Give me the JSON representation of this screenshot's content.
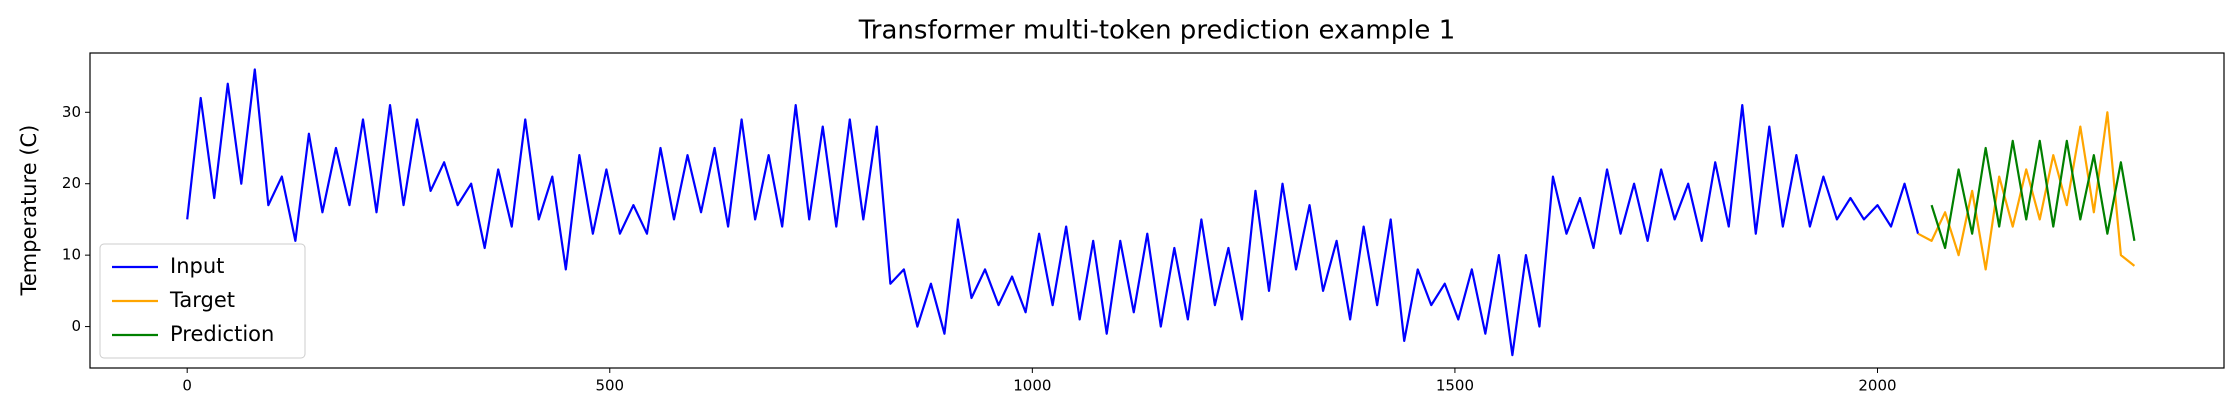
{
  "chart_data": {
    "type": "line",
    "title": "Transformer multi-token prediction example 1",
    "y_label": "Temperature (C)",
    "xlim": [
      -115,
      2410
    ],
    "ylim": [
      -5.8,
      38.3
    ],
    "xticks": [
      0,
      500,
      1000,
      1500,
      2000
    ],
    "yticks": [
      0,
      10,
      20,
      30
    ],
    "legend": "lower left",
    "series": [
      {
        "name": "Input",
        "color": "#0000ff",
        "x": [
          0,
          16,
          32,
          48,
          64,
          80,
          96,
          112,
          128,
          144,
          160,
          176,
          192,
          208,
          224,
          240,
          256,
          272,
          288,
          304,
          320,
          336,
          352,
          368,
          384,
          400,
          416,
          432,
          448,
          464,
          480,
          496,
          512,
          528,
          544,
          560,
          576,
          592,
          608,
          624,
          640,
          656,
          672,
          688,
          704,
          720,
          736,
          752,
          768,
          784,
          800,
          816,
          832,
          848,
          864,
          880,
          896,
          912,
          928,
          944,
          960,
          976,
          992,
          1008,
          1024,
          1040,
          1056,
          1072,
          1088,
          1104,
          1120,
          1136,
          1152,
          1168,
          1184,
          1200,
          1216,
          1232,
          1248,
          1264,
          1280,
          1296,
          1312,
          1328,
          1344,
          1360,
          1376,
          1392,
          1408,
          1424,
          1440,
          1456,
          1472,
          1488,
          1504,
          1520,
          1536,
          1552,
          1568,
          1584,
          1600,
          1616,
          1632,
          1648,
          1664,
          1680,
          1696,
          1712,
          1728,
          1744,
          1760,
          1776,
          1792,
          1808,
          1824,
          1840,
          1856,
          1872,
          1888,
          1904,
          1920,
          1936,
          1952,
          1968,
          1984,
          2000,
          2016,
          2032,
          2048
        ],
        "values": [
          15,
          32,
          18,
          34,
          20,
          36,
          17,
          21,
          12,
          27,
          16,
          25,
          17,
          29,
          16,
          31,
          17,
          29,
          19,
          23,
          17,
          20,
          11,
          22,
          14,
          29,
          15,
          21,
          8,
          24,
          13,
          22,
          13,
          17,
          13,
          25,
          15,
          24,
          16,
          25,
          14,
          29,
          15,
          24,
          14,
          31,
          15,
          28,
          14,
          29,
          15,
          28,
          6,
          8,
          0,
          6,
          -1,
          15,
          4,
          8,
          3,
          7,
          2,
          13,
          3,
          14,
          1,
          12,
          -1,
          12,
          2,
          13,
          0,
          11,
          1,
          15,
          3,
          11,
          1,
          19,
          5,
          20,
          8,
          17,
          5,
          12,
          1,
          14,
          3,
          15,
          -2,
          8,
          3,
          6,
          1,
          8,
          -1,
          10,
          -4,
          10,
          0,
          21,
          13,
          18,
          11,
          22,
          13,
          20,
          12,
          22,
          15,
          20,
          12,
          23,
          14,
          31,
          13,
          28,
          14,
          24,
          14,
          21,
          15,
          18,
          15,
          17,
          14,
          20,
          13
        ]
      },
      {
        "name": "Target",
        "color": "#ffa500",
        "x": [
          2048,
          2064,
          2080,
          2096,
          2112,
          2128,
          2144,
          2160,
          2176,
          2192,
          2208,
          2224,
          2240,
          2256,
          2272,
          2288,
          2304
        ],
        "values": [
          13,
          12,
          16,
          10,
          19,
          8,
          21,
          14,
          22,
          15,
          24,
          17,
          28,
          16,
          30,
          10,
          8.5
        ]
      },
      {
        "name": "Prediction",
        "color": "#008000",
        "x": [
          2064,
          2080,
          2096,
          2112,
          2128,
          2144,
          2160,
          2176,
          2192,
          2208,
          2224,
          2240,
          2256,
          2272,
          2288,
          2304
        ],
        "values": [
          17,
          11,
          22,
          13,
          25,
          14,
          26,
          15,
          26,
          14,
          26,
          15,
          24,
          13,
          23,
          12
        ]
      }
    ]
  }
}
